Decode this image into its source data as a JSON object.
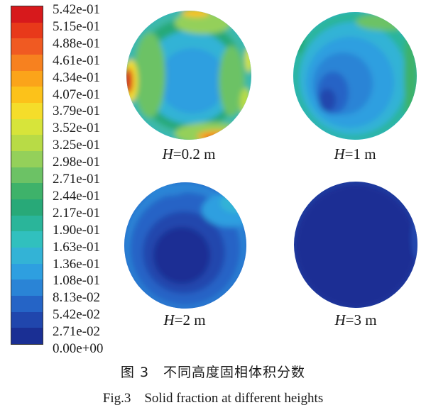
{
  "legend": {
    "labels": [
      "5.42e-01",
      "5.15e-01",
      "4.88e-01",
      "4.61e-01",
      "4.34e-01",
      "4.07e-01",
      "3.79e-01",
      "3.52e-01",
      "3.25e-01",
      "2.98e-01",
      "2.71e-01",
      "2.44e-01",
      "2.17e-01",
      "1.90e-01",
      "1.63e-01",
      "1.36e-01",
      "1.08e-01",
      "8.13e-02",
      "5.42e-02",
      "2.71e-02",
      "0.00e+00"
    ],
    "colors": [
      "#d7191c",
      "#e8391a",
      "#f05a22",
      "#f7811f",
      "#fba41a",
      "#fcc21a",
      "#f5dd2a",
      "#d7e43a",
      "#b8db46",
      "#94d05a",
      "#6cc265",
      "#3eb26a",
      "#28a978",
      "#2ab59a",
      "#31c0be",
      "#33b3d6",
      "#2e9fe0",
      "#2a84d6",
      "#2564c6",
      "#2046ad",
      "#1a2f94"
    ]
  },
  "plots": [
    {
      "var": "H",
      "value": "=0.2 m"
    },
    {
      "var": "H",
      "value": "=1 m"
    },
    {
      "var": "H",
      "value": "=2 m"
    },
    {
      "var": "H",
      "value": "=3 m"
    }
  ],
  "caption": {
    "cn": "图 3　不同高度固相体积分数",
    "en": "Fig.3　Solid fraction at different heights"
  }
}
